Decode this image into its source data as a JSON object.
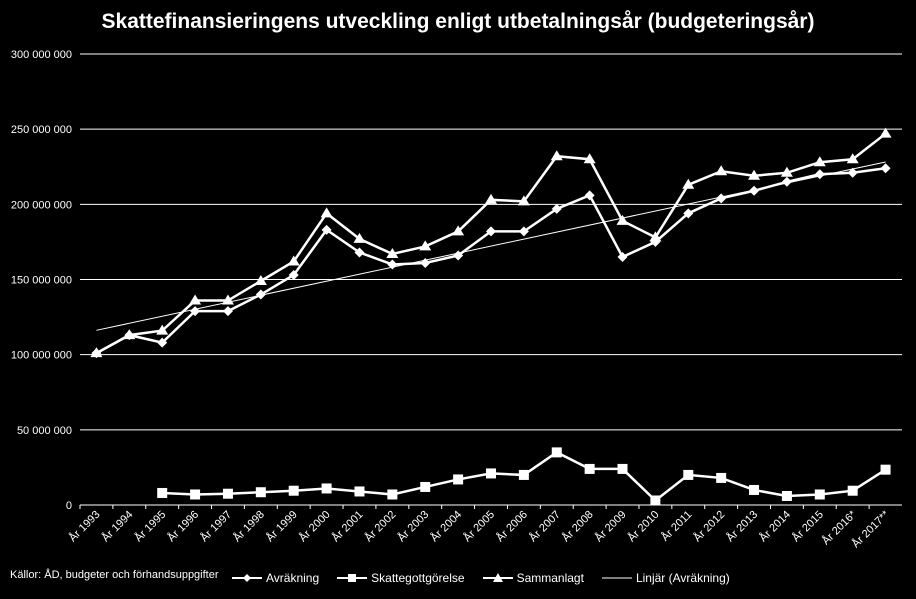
{
  "chart_data": {
    "type": "line",
    "title": "Skattefinansieringens utveckling enligt utbetalningsår (budgeteringsår)",
    "source": "Källor: ÅD, budgeter och förhandsuppgifter",
    "categories": [
      "År 1993",
      "År 1994",
      "År 1995",
      "År 1996",
      "År 1997",
      "År 1998",
      "År 1999",
      "År 2000",
      "År 2001",
      "År 2002",
      "År 2003",
      "År 2004",
      "År 2005",
      "År 2006",
      "År 2007",
      "År 2008",
      "År 2009",
      "År 2010",
      "År 2011",
      "År 2012",
      "År 2013",
      "År 2014",
      "År 2015",
      "År 2016*",
      "År 2017**"
    ],
    "yticks": [
      "0",
      "50 000 000",
      "100 000 000",
      "150 000 000",
      "200 000 000",
      "250 000 000",
      "300 000 000"
    ],
    "ylim": [
      0,
      300000000
    ],
    "grid": true,
    "legend_position": "bottom",
    "series": [
      {
        "name": "Avräkning",
        "marker": "diamond",
        "values": [
          101000000,
          113000000,
          108000000,
          129000000,
          129000000,
          140000000,
          153000000,
          183000000,
          168000000,
          160000000,
          161000000,
          166000000,
          182000000,
          182000000,
          197000000,
          206000000,
          165000000,
          175000000,
          194000000,
          204000000,
          209000000,
          215000000,
          220000000,
          221000000,
          224000000
        ]
      },
      {
        "name": "Skattegottgörelse",
        "marker": "square",
        "values": [
          null,
          null,
          8000000,
          7000000,
          7500000,
          8500000,
          9500000,
          11000000,
          9000000,
          7000000,
          12000000,
          17000000,
          21000000,
          20000000,
          35000000,
          24000000,
          24000000,
          3000000,
          20000000,
          18000000,
          10000000,
          6000000,
          7000000,
          9500000,
          23500000
        ]
      },
      {
        "name": "Sammanlagt",
        "marker": "triangle",
        "values": [
          101000000,
          113000000,
          116000000,
          136000000,
          136000000,
          149000000,
          162000000,
          194000000,
          177000000,
          167000000,
          172000000,
          182000000,
          203000000,
          202000000,
          232000000,
          230000000,
          189000000,
          178000000,
          213000000,
          222000000,
          219000000,
          221000000,
          228000000,
          230000000,
          247000000
        ]
      },
      {
        "name": "Linjär (Avräkning)",
        "marker": "none",
        "trendline_of": "Avräkning"
      }
    ]
  }
}
